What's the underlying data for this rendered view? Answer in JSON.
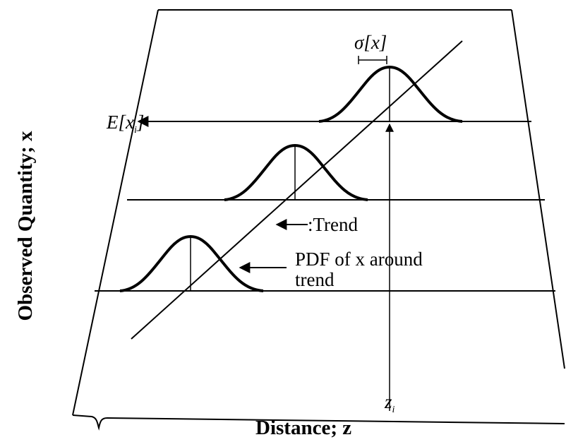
{
  "figure": {
    "x_axis_label": "Distance; z",
    "y_axis_label": "Observed Quantity; x",
    "z_tick_label": "z",
    "z_tick_subscript": "i",
    "expected_value_label": "E[x",
    "expected_value_subscript": "i",
    "expected_value_close": "]",
    "sigma_label": "σ[x]",
    "trend_label": ":Trend",
    "pdf_label_line1": "PDF of x around",
    "pdf_label_line2": "trend"
  }
}
